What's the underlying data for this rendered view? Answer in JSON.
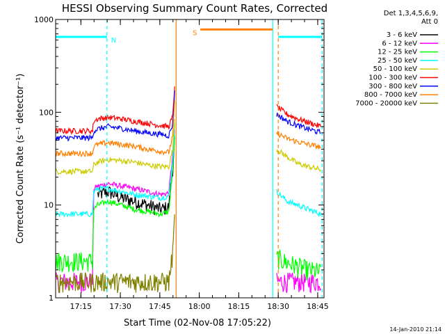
{
  "chart_data": {
    "type": "line",
    "title": "HESSI Observing Summary Count Rates, Corrected",
    "xlabel": "Start Time (02-Nov-08 17:05:22)",
    "ylabel": "Corrected Count Rate (s⁻¹ detector⁻¹)",
    "yscale": "log",
    "ylim": [
      1,
      1000
    ],
    "xlim_minutes": [
      0,
      102
    ],
    "x_unit": "minutes after 17:05:22",
    "yticks": [
      "1",
      "10",
      "100",
      "1000"
    ],
    "xticks": [
      {
        "label": "17:15",
        "x": 9.6
      },
      {
        "label": "17:30",
        "x": 24.6
      },
      {
        "label": "17:45",
        "x": 39.6
      },
      {
        "label": "18:00",
        "x": 54.6
      },
      {
        "label": "18:15",
        "x": 69.6
      },
      {
        "label": "18:30",
        "x": 84.6
      },
      {
        "label": "18:45",
        "x": 99.6
      }
    ],
    "legend_header": [
      "Det 1,3,4,5,6,9,",
      "Att 0"
    ],
    "legend_position": "right",
    "grid": false,
    "series": [
      {
        "name": "3 - 6 keV",
        "color": "#000000",
        "x": [
          14,
          16,
          20,
          25,
          30,
          35,
          40,
          43,
          44.5,
          45.5
        ],
        "y": [
          null,
          13,
          14,
          12,
          11,
          10,
          9,
          9.5,
          25,
          60
        ]
      },
      {
        "name": "6 - 12 keV",
        "color": "#ff00ff",
        "x": [
          0,
          14,
          14.5,
          16,
          20,
          25,
          30,
          35,
          40,
          43,
          44.5,
          45.5,
          46,
          83,
          83.5,
          84,
          88,
          92,
          96,
          101
        ],
        "y": [
          1.5,
          1.5,
          15,
          16,
          17,
          16,
          15,
          14,
          13,
          13.5,
          35,
          80,
          null,
          null,
          null,
          1.5,
          1.5,
          1.5,
          1.5,
          1.5
        ]
      },
      {
        "name": "12 - 25 keV",
        "color": "#00ff00",
        "x": [
          0,
          14,
          14.5,
          16,
          20,
          25,
          30,
          35,
          40,
          43,
          44.5,
          45.5,
          46,
          83,
          83.5,
          84,
          88,
          92,
          96,
          101
        ],
        "y": [
          2.5,
          2.5,
          9,
          10,
          11,
          10,
          9,
          8.5,
          8,
          8.5,
          25,
          70,
          null,
          null,
          null,
          2.7,
          2.4,
          2.2,
          2.0,
          1.9
        ]
      },
      {
        "name": "25 - 50 keV",
        "color": "#00ffff",
        "x": [
          0,
          14,
          14.5,
          16,
          20,
          25,
          30,
          35,
          40,
          43,
          44.5,
          45.5,
          46,
          83,
          83.5,
          84,
          88,
          92,
          96,
          101
        ],
        "y": [
          8,
          8,
          14,
          15,
          15,
          14,
          13,
          12.5,
          12,
          12.5,
          30,
          100,
          null,
          null,
          null,
          14,
          11,
          10,
          9,
          8
        ]
      },
      {
        "name": "50 - 100 keV",
        "color": "#cccc00",
        "x": [
          0,
          14,
          14.5,
          16,
          20,
          25,
          30,
          35,
          40,
          43,
          44.5,
          45.5,
          46,
          83,
          83.5,
          84,
          88,
          92,
          96,
          101
        ],
        "y": [
          23,
          23,
          27,
          29,
          31,
          30,
          29,
          27,
          26,
          26,
          40,
          110,
          null,
          null,
          null,
          40,
          33,
          28,
          26,
          24
        ]
      },
      {
        "name": "100 - 300 keV",
        "color": "#ff0000",
        "x": [
          0,
          14,
          14.5,
          16,
          20,
          25,
          30,
          35,
          40,
          43,
          44.5,
          45.5,
          46,
          83,
          83.5,
          84,
          88,
          92,
          96,
          101
        ],
        "y": [
          63,
          63,
          80,
          85,
          88,
          85,
          80,
          76,
          72,
          70,
          90,
          260,
          null,
          null,
          null,
          115,
          95,
          85,
          78,
          70
        ]
      },
      {
        "name": "300 - 800 keV",
        "color": "#0000ff",
        "x": [
          0,
          14,
          14.5,
          16,
          20,
          25,
          30,
          35,
          40,
          43,
          44.5,
          45.5,
          46,
          83,
          83.5,
          84,
          88,
          92,
          96,
          101
        ],
        "y": [
          53,
          53,
          63,
          66,
          70,
          67,
          63,
          60,
          58,
          56,
          75,
          220,
          null,
          null,
          null,
          95,
          80,
          72,
          66,
          60
        ]
      },
      {
        "name": "800 - 7000 keV",
        "color": "#ff7f00",
        "x": [
          0,
          14,
          14.5,
          16,
          20,
          25,
          30,
          35,
          40,
          43,
          44.5,
          45.5,
          46,
          83,
          83.5,
          84,
          88,
          92,
          96,
          101
        ],
        "y": [
          36,
          36,
          43,
          45,
          47,
          45,
          43,
          40,
          38,
          37,
          55,
          170,
          null,
          null,
          null,
          60,
          52,
          48,
          45,
          42
        ]
      },
      {
        "name": "7000 - 20000 keV",
        "color": "#808000",
        "x": [
          0,
          14,
          16,
          20,
          25,
          30,
          35,
          40,
          42,
          43,
          44.5,
          45.5,
          46
        ],
        "y": [
          1.5,
          1.5,
          1.5,
          1.5,
          1.5,
          1.5,
          1.5,
          1.5,
          1.5,
          1.5,
          3,
          12,
          null
        ]
      }
    ],
    "flags": [
      {
        "name": "night",
        "label": "N",
        "color": "#00ffff",
        "y": 650,
        "x_start": 0,
        "x_end": 19.5,
        "x_start2": 84.6,
        "x_end2": 101.3
      },
      {
        "name": "saa",
        "label": "S",
        "color": "#ff7f00",
        "y": 780,
        "x_start": 55,
        "x_end": 82.5
      }
    ],
    "vlines": [
      {
        "x": 19.5,
        "color": "#00ffff",
        "style": "dashed"
      },
      {
        "x": 45.8,
        "color": "#ff7f00",
        "style": "solid"
      },
      {
        "x": 82.5,
        "color": "#00ffff",
        "style": "solid"
      },
      {
        "x": 84.6,
        "color": "#ff7f00",
        "style": "dashed"
      },
      {
        "x": 101.3,
        "color": "#00ffff",
        "style": "dashed"
      }
    ],
    "footer_date": "14-Jan-2010 21:14"
  }
}
